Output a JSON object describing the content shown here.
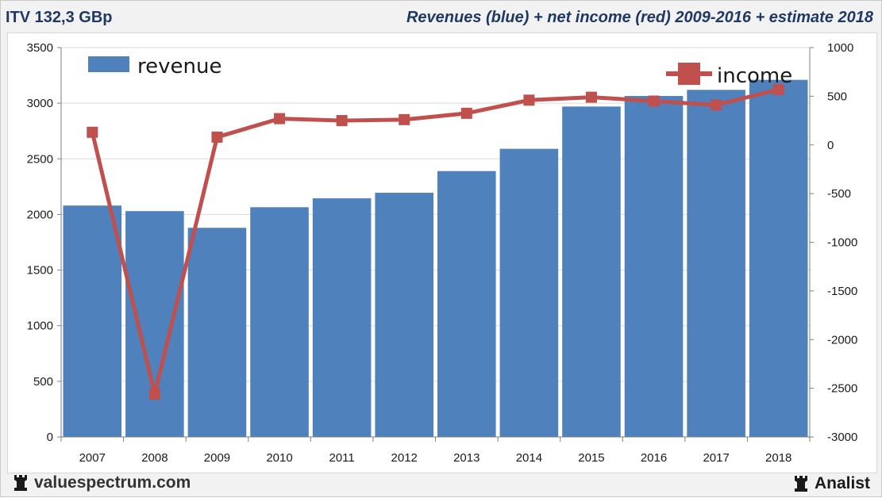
{
  "header": {
    "ticker": "ITV 132,3 GBp",
    "subtitle": "Revenues (blue) + net income (red) 2009-2016 + estimate 2018"
  },
  "footer": {
    "site": "valuespectrum.com",
    "brand": "Analist"
  },
  "colors": {
    "bar": "#4f81bd",
    "line": "#c0504d",
    "text": "#1f3864",
    "grid": "#d9d9d9"
  },
  "chart_data": {
    "type": "bar",
    "categories": [
      "2007",
      "2008",
      "2009",
      "2010",
      "2011",
      "2012",
      "2013",
      "2014",
      "2015",
      "2016",
      "2017",
      "2018"
    ],
    "series": [
      {
        "name": "revenue",
        "type": "bar",
        "axis": "left",
        "values": [
          2080,
          2030,
          1880,
          2065,
          2145,
          2195,
          2390,
          2590,
          2970,
          3065,
          3120,
          3210
        ]
      },
      {
        "name": "income",
        "type": "line",
        "axis": "right",
        "values": [
          130,
          -2560,
          80,
          270,
          250,
          260,
          325,
          460,
          490,
          450,
          410,
          570
        ]
      }
    ],
    "left_axis": {
      "min": 0,
      "max": 3500,
      "ticks": [
        "0",
        "500",
        "1000",
        "1500",
        "2000",
        "2500",
        "3000",
        "3500"
      ]
    },
    "right_axis": {
      "min": -3000,
      "max": 1000,
      "ticks": [
        "-3000",
        "-2500",
        "-2000",
        "-1500",
        "-1000",
        "-500",
        "0",
        "500",
        "1000"
      ]
    },
    "grid": true,
    "legend_position": "top"
  }
}
